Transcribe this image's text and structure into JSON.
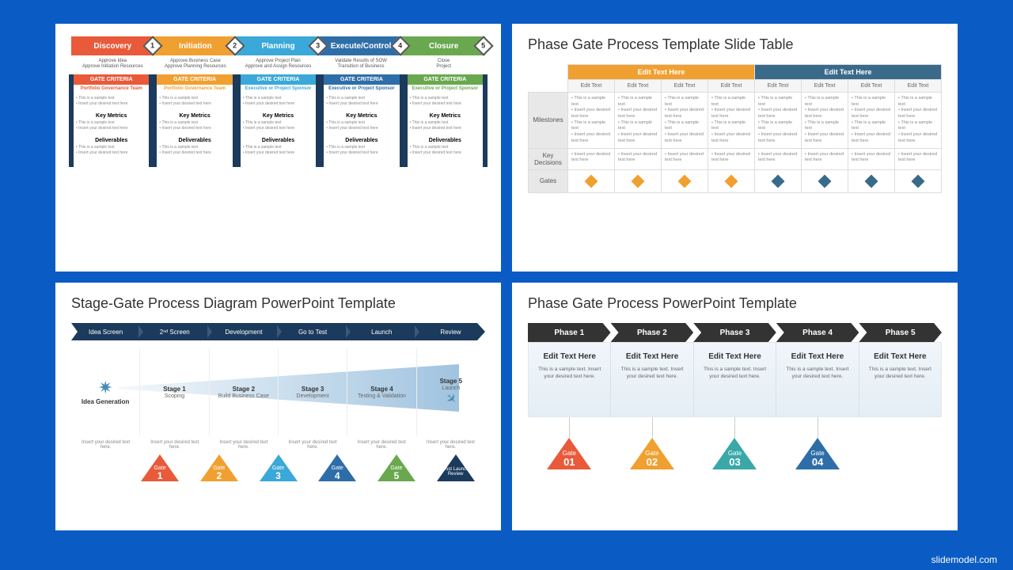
{
  "background_color": "#0a5cc4",
  "watermark": "slidemodel.com",
  "slide1": {
    "phases": [
      {
        "label": "Discovery",
        "color": "#e85a3a",
        "num": "1",
        "approve": "Approve Idea\nApprove Initiation Resources"
      },
      {
        "label": "Initiation",
        "color": "#f0a030",
        "num": "2",
        "approve": "Approve Business Case\nApprove Planning Resources"
      },
      {
        "label": "Planning",
        "color": "#3aa8d8",
        "num": "3",
        "approve": "Approve Project Plan\nApprove and Assign Resources"
      },
      {
        "label": "Execute/Control",
        "color": "#2e6ea8",
        "num": "4",
        "approve": "Validate Results of SOW\nTransition of Business"
      },
      {
        "label": "Closure",
        "color": "#6aa84f",
        "num": "5",
        "approve": "Close\nProject"
      }
    ],
    "columns": [
      {
        "hdr_bg": "#e85a3a",
        "sub": "Portfolio Governance Team",
        "sub_color": "#e85a3a"
      },
      {
        "hdr_bg": "#f0a030",
        "sub": "Portfolio Governance Team",
        "sub_color": "#f0a030"
      },
      {
        "hdr_bg": "#3aa8d8",
        "sub": "Executive or Project Sponsor",
        "sub_color": "#3aa8d8"
      },
      {
        "hdr_bg": "#2e6ea8",
        "sub": "Executive or Project Sponsor",
        "sub_color": "#2e6ea8"
      },
      {
        "hdr_bg": "#6aa84f",
        "sub": "Executive or Project Sponsor",
        "sub_color": "#6aa84f"
      }
    ],
    "gate_label": "GATE CRITERIA",
    "sections": [
      "Key Metrics",
      "Deliverables"
    ],
    "placeholder": "• This is a sample text\n• Insert your desired text here"
  },
  "slide2": {
    "title": "Phase Gate Process Template Slide Table",
    "header_groups": [
      {
        "label": "Edit Text Here",
        "color": "#f0a030",
        "span": 4,
        "diamond": "#f0a030"
      },
      {
        "label": "Edit Text Here",
        "color": "#3a6a8a",
        "span": 4,
        "diamond": "#3a6a8a"
      }
    ],
    "sub_header": "Edit Text",
    "rows": [
      "Milestones",
      "Key Decisions",
      "Gates"
    ],
    "cell_text": "• This is a sample text\n• Insert your desired text here\n• This is a sample text\n• Insert your desired text here",
    "cell_short": "• Insert your desired text here"
  },
  "slide3": {
    "title": "Stage-Gate Process Diagram PowerPoint Template",
    "arrow_color": "#1b3a5c",
    "arrow_items": [
      "Idea Screen",
      "2ⁿᵈ Screen",
      "Development",
      "Go to Test",
      "Launch",
      "Review"
    ],
    "idea_label": "Idea Generation",
    "stages": [
      {
        "t": "Stage 1",
        "s": "Scoping"
      },
      {
        "t": "Stage 2",
        "s": "Build Business Case"
      },
      {
        "t": "Stage 3",
        "s": "Development"
      },
      {
        "t": "Stage 4",
        "s": "Testing & Validation"
      },
      {
        "t": "Stage 5",
        "s": "Launch"
      }
    ],
    "insert": "Insert your desired text here.",
    "gates": [
      {
        "n": "1",
        "c": "#e85a3a"
      },
      {
        "n": "2",
        "c": "#f0a030"
      },
      {
        "n": "3",
        "c": "#3aa8d8"
      },
      {
        "n": "4",
        "c": "#2e6ea8"
      },
      {
        "n": "5",
        "c": "#6aa84f"
      }
    ],
    "gate_label": "Gate",
    "post": {
      "label": "Post Launch Review",
      "c": "#1b3a5c"
    }
  },
  "slide4": {
    "title": "Phase Gate Process PowerPoint Template",
    "phases": [
      "Phase 1",
      "Phase 2",
      "Phase 3",
      "Phase 4",
      "Phase 5"
    ],
    "phase_color": "#333333",
    "edit": "Edit Text Here",
    "body": "This is a sample text. Insert your desired text here.",
    "gates": [
      {
        "n": "01",
        "c": "#e85a3a"
      },
      {
        "n": "02",
        "c": "#f0a030"
      },
      {
        "n": "03",
        "c": "#3aa8a8"
      },
      {
        "n": "04",
        "c": "#2e6ea8"
      }
    ],
    "gate_label": "Gate"
  }
}
